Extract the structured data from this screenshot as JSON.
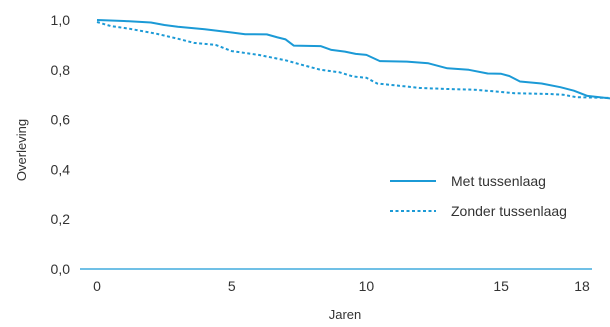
{
  "chart_data": {
    "type": "line",
    "xlabel": "Jaren",
    "ylabel": "Overleving",
    "xlim": [
      0,
      19.5
    ],
    "ylim": [
      0,
      1.0
    ],
    "x_ticks": [
      0,
      5,
      10,
      15,
      18
    ],
    "x_tick_labels": [
      "0",
      "5",
      "10",
      "15",
      "18"
    ],
    "y_ticks": [
      0,
      0.2,
      0.4,
      0.6,
      0.8,
      1.0
    ],
    "y_tick_labels": [
      "0,0",
      "0,2",
      "0,4",
      "0,6",
      "0,8",
      "1,0"
    ],
    "grid": false,
    "legend_position": "right",
    "colors": {
      "series": "#1b9ad6",
      "axis": "#1b9ad6",
      "text": "#333333"
    },
    "series": [
      {
        "name": "Met tussenlaag",
        "style": "solid",
        "points": [
          [
            0,
            1.0
          ],
          [
            1,
            0.996
          ],
          [
            2,
            0.99
          ],
          [
            2.5,
            0.98
          ],
          [
            3,
            0.973
          ],
          [
            4,
            0.963
          ],
          [
            5,
            0.95
          ],
          [
            5.5,
            0.943
          ],
          [
            6.3,
            0.942
          ],
          [
            6.7,
            0.93
          ],
          [
            7,
            0.922
          ],
          [
            7.3,
            0.897
          ],
          [
            8.3,
            0.895
          ],
          [
            8.7,
            0.88
          ],
          [
            9.2,
            0.873
          ],
          [
            9.6,
            0.864
          ],
          [
            10,
            0.86
          ],
          [
            10.5,
            0.835
          ],
          [
            11.5,
            0.833
          ],
          [
            12.3,
            0.826
          ],
          [
            13,
            0.806
          ],
          [
            13.8,
            0.8
          ],
          [
            14.5,
            0.785
          ],
          [
            15,
            0.784
          ],
          [
            15.3,
            0.775
          ],
          [
            15.7,
            0.753
          ],
          [
            16.5,
            0.745
          ],
          [
            17.2,
            0.73
          ],
          [
            17.7,
            0.716
          ],
          [
            18.2,
            0.695
          ],
          [
            19.5,
            0.68
          ]
        ]
      },
      {
        "name": "Zonder tussenlaag",
        "style": "dashed",
        "points": [
          [
            0,
            0.992
          ],
          [
            0.5,
            0.976
          ],
          [
            1.2,
            0.965
          ],
          [
            2.2,
            0.945
          ],
          [
            3,
            0.925
          ],
          [
            3.6,
            0.908
          ],
          [
            4.4,
            0.9
          ],
          [
            5,
            0.875
          ],
          [
            6,
            0.86
          ],
          [
            7,
            0.838
          ],
          [
            7.6,
            0.82
          ],
          [
            8.3,
            0.8
          ],
          [
            9,
            0.79
          ],
          [
            9.5,
            0.773
          ],
          [
            10,
            0.768
          ],
          [
            10.4,
            0.745
          ],
          [
            11.3,
            0.735
          ],
          [
            12,
            0.727
          ],
          [
            13,
            0.723
          ],
          [
            14,
            0.72
          ],
          [
            14.8,
            0.713
          ],
          [
            15.5,
            0.706
          ],
          [
            16.8,
            0.703
          ],
          [
            17.3,
            0.7
          ],
          [
            17.8,
            0.69
          ],
          [
            19.5,
            0.686
          ]
        ]
      }
    ]
  }
}
